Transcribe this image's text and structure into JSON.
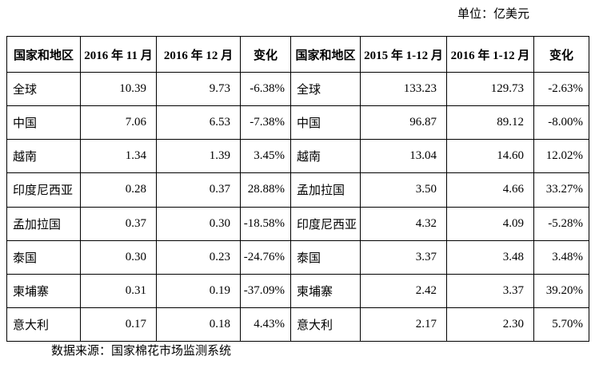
{
  "unit_label": "单位：亿美元",
  "source_label": "数据来源：国家棉花市场监测系统",
  "colors": {
    "background": "#ffffff",
    "text": "#000000",
    "border": "#000000"
  },
  "table": {
    "headers": [
      "国家和地区",
      "2016 年 11 月",
      "2016 年 12 月",
      "变化",
      "国家和地区",
      "2015 年 1-12 月",
      "2016 年 1-12 月",
      "变化"
    ],
    "rows": [
      [
        "全球",
        "10.39",
        "9.73",
        "-6.38%",
        "全球",
        "133.23",
        "129.73",
        "-2.63%"
      ],
      [
        "中国",
        "7.06",
        "6.53",
        "-7.38%",
        "中国",
        "96.87",
        "89.12",
        "-8.00%"
      ],
      [
        "越南",
        "1.34",
        "1.39",
        "3.45%",
        "越南",
        "13.04",
        "14.60",
        "12.02%"
      ],
      [
        "印度尼西亚",
        "0.28",
        "0.37",
        "28.88%",
        "孟加拉国",
        "3.50",
        "4.66",
        "33.27%"
      ],
      [
        "孟加拉国",
        "0.37",
        "0.30",
        "-18.58%",
        "印度尼西亚",
        "4.32",
        "4.09",
        "-5.28%"
      ],
      [
        "泰国",
        "0.30",
        "0.23",
        "-24.76%",
        "泰国",
        "3.37",
        "3.48",
        "3.48%"
      ],
      [
        "柬埔寨",
        "0.31",
        "0.19",
        "-37.09%",
        "柬埔寨",
        "2.42",
        "3.37",
        "39.20%"
      ],
      [
        "意大利",
        "0.17",
        "0.18",
        "4.43%",
        "意大利",
        "2.17",
        "2.30",
        "5.70%"
      ]
    ]
  }
}
